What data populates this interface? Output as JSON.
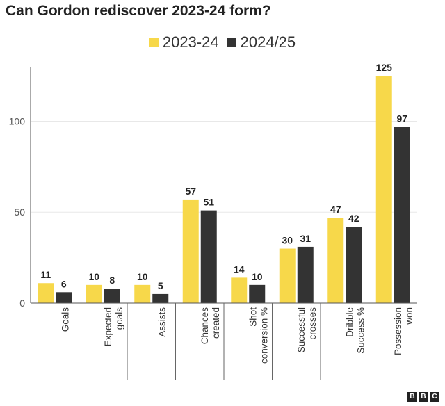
{
  "title": "Can Gordon rediscover 2023-24 form?",
  "colors": {
    "series1": "#f7d84a",
    "series2": "#333333",
    "grid": "#e8e8e8",
    "axis": "#555555",
    "text": "#222222"
  },
  "logo": {
    "letters": [
      "B",
      "B",
      "C"
    ]
  },
  "chart_data": {
    "type": "bar",
    "title": "Can Gordon rediscover 2023-24 form?",
    "xlabel": "",
    "ylabel": "",
    "ylim": [
      0,
      130
    ],
    "yticks": [
      0,
      50,
      100
    ],
    "grid": true,
    "legend_position": "top-center",
    "categories": [
      [
        "Goals"
      ],
      [
        "Expected",
        "goals"
      ],
      [
        "Assists"
      ],
      [
        "Chances",
        "created"
      ],
      [
        "Shot",
        "conversion %"
      ],
      [
        "Successful",
        "crosses"
      ],
      [
        "Dribble",
        "Success %"
      ],
      [
        "Possession",
        "won"
      ]
    ],
    "series": [
      {
        "name": "2023-24",
        "values": [
          11,
          10,
          10,
          57,
          14,
          30,
          47,
          125
        ]
      },
      {
        "name": "2024/25",
        "values": [
          6,
          8,
          5,
          51,
          10,
          31,
          42,
          97
        ]
      }
    ]
  }
}
